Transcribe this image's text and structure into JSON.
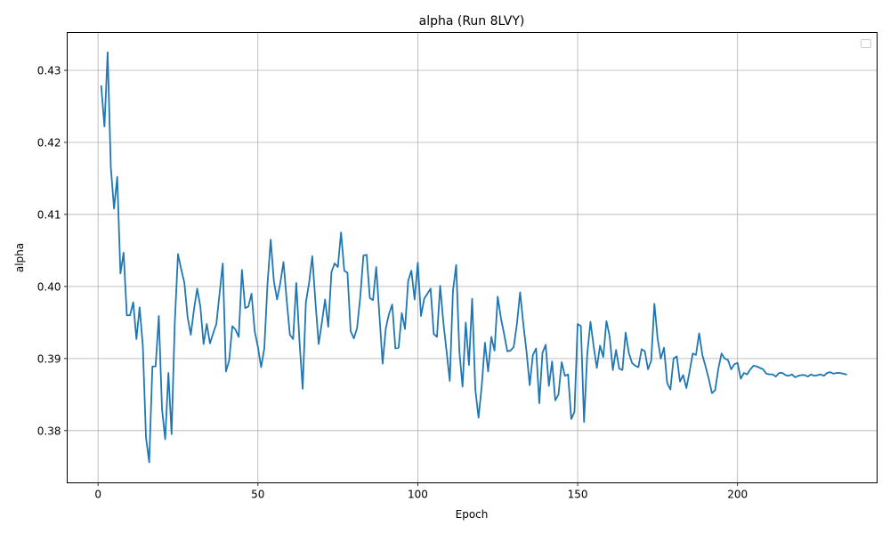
{
  "chart_data": {
    "type": "line",
    "title": "alpha (Run 8LVY)",
    "xlabel": "Epoch",
    "ylabel": "alpha",
    "xlim": [
      -9.65,
      243.65
    ],
    "ylim": [
      0.37275,
      0.43525
    ],
    "xticks": [
      0,
      50,
      100,
      150,
      200
    ],
    "yticks": [
      0.38,
      0.39,
      0.4,
      0.41,
      0.42,
      0.43
    ],
    "ytick_labels": [
      "0.38",
      "0.39",
      "0.40",
      "0.41",
      "0.42",
      "0.43"
    ],
    "grid": true,
    "legend": "top-right (empty)",
    "color": "#1f77b4",
    "series": [
      {
        "x": [
          1,
          2,
          3,
          4,
          5,
          6,
          7,
          8,
          9,
          10,
          11,
          12,
          13,
          14,
          15,
          16,
          17,
          18,
          19,
          20,
          21,
          22,
          23,
          24,
          25,
          26,
          27,
          28,
          29,
          30,
          31,
          32,
          33,
          34,
          35,
          36,
          37,
          38,
          39,
          40,
          41,
          42,
          43,
          44,
          45,
          46,
          47,
          48,
          49,
          50,
          51,
          52,
          53,
          54,
          55,
          56,
          57,
          58,
          59,
          60,
          61,
          62,
          63,
          64,
          65,
          66,
          67,
          68,
          69,
          70,
          71,
          72,
          73,
          74,
          75,
          76,
          77,
          78,
          79,
          80,
          81,
          82,
          83,
          84,
          85,
          86,
          87,
          88,
          89,
          90,
          91,
          92,
          93,
          94,
          95,
          96,
          97,
          98,
          99,
          100,
          101,
          102,
          103,
          104,
          105,
          106,
          107,
          108,
          109,
          110,
          111,
          112,
          113,
          114,
          115,
          116,
          117,
          118,
          119,
          120,
          121,
          122,
          123,
          124,
          125,
          126,
          127,
          128,
          129,
          130,
          131,
          132,
          133,
          134,
          135,
          136,
          137,
          138,
          139,
          140,
          141,
          142,
          143,
          144,
          145,
          146,
          147,
          148,
          149,
          150,
          151,
          152,
          153,
          154,
          155,
          156,
          157,
          158,
          159,
          160,
          161,
          162,
          163,
          164,
          165,
          166,
          167,
          168,
          169,
          170,
          171,
          172,
          173,
          174,
          175,
          176,
          177,
          178,
          179,
          180,
          181,
          182,
          183,
          184,
          185,
          186,
          187,
          188,
          189,
          190,
          191,
          192,
          193,
          194,
          195,
          196,
          197,
          198,
          199,
          200,
          201,
          202,
          203,
          204,
          205,
          206,
          207,
          208,
          209,
          210,
          211,
          212,
          213,
          214,
          215,
          216,
          217,
          218,
          219,
          220,
          221,
          222,
          223,
          224,
          225,
          226,
          227,
          228,
          229,
          230,
          231,
          232,
          233,
          234
        ],
        "y": [
          0.4278,
          0.4222,
          0.4325,
          0.4165,
          0.4108,
          0.4152,
          0.4018,
          0.4047,
          0.396,
          0.396,
          0.3978,
          0.3927,
          0.3971,
          0.3918,
          0.379,
          0.3756,
          0.3889,
          0.3889,
          0.3959,
          0.383,
          0.3788,
          0.388,
          0.3795,
          0.395,
          0.4045,
          0.4024,
          0.4005,
          0.3958,
          0.3933,
          0.3968,
          0.3997,
          0.3972,
          0.392,
          0.3948,
          0.3921,
          0.3935,
          0.3948,
          0.399,
          0.4032,
          0.3882,
          0.3897,
          0.3945,
          0.394,
          0.393,
          0.4023,
          0.397,
          0.3972,
          0.399,
          0.3938,
          0.3916,
          0.3888,
          0.3914,
          0.4004,
          0.4065,
          0.4007,
          0.3982,
          0.4005,
          0.4034,
          0.3981,
          0.3933,
          0.3927,
          0.4005,
          0.3924,
          0.3858,
          0.3978,
          0.4005,
          0.4042,
          0.3978,
          0.392,
          0.395,
          0.3982,
          0.3944,
          0.402,
          0.4032,
          0.4027,
          0.4075,
          0.4022,
          0.4019,
          0.3938,
          0.3928,
          0.3942,
          0.3985,
          0.4043,
          0.4044,
          0.3984,
          0.3981,
          0.4027,
          0.396,
          0.3893,
          0.3942,
          0.3962,
          0.3975,
          0.3914,
          0.3915,
          0.3963,
          0.3941,
          0.4008,
          0.4022,
          0.3982,
          0.4033,
          0.3959,
          0.3983,
          0.399,
          0.3997,
          0.3934,
          0.393,
          0.4001,
          0.395,
          0.391,
          0.3869,
          0.3994,
          0.403,
          0.391,
          0.3861,
          0.395,
          0.3891,
          0.3983,
          0.3857,
          0.3818,
          0.3862,
          0.3922,
          0.3882,
          0.393,
          0.3911,
          0.3986,
          0.3956,
          0.3934,
          0.391,
          0.3911,
          0.3916,
          0.3948,
          0.3992,
          0.3948,
          0.391,
          0.3863,
          0.3905,
          0.3914,
          0.3838,
          0.3908,
          0.3919,
          0.3862,
          0.3896,
          0.3842,
          0.385,
          0.3895,
          0.3876,
          0.3878,
          0.3816,
          0.3826,
          0.3948,
          0.3945,
          0.3812,
          0.3906,
          0.3951,
          0.3917,
          0.3887,
          0.3918,
          0.3902,
          0.3952,
          0.3931,
          0.3884,
          0.3912,
          0.3886,
          0.3884,
          0.3936,
          0.3908,
          0.3894,
          0.389,
          0.3888,
          0.3913,
          0.391,
          0.3885,
          0.3897,
          0.3976,
          0.3928,
          0.39,
          0.3915,
          0.3866,
          0.3857,
          0.39,
          0.3903,
          0.3868,
          0.3877,
          0.3859,
          0.3882,
          0.3907,
          0.3905,
          0.3935,
          0.3905,
          0.3889,
          0.3872,
          0.3852,
          0.3856,
          0.3886,
          0.3907,
          0.39,
          0.3898,
          0.3885,
          0.3892,
          0.3894,
          0.3872,
          0.388,
          0.3878,
          0.3885,
          0.389,
          0.3889,
          0.3887,
          0.3885,
          0.3879,
          0.3878,
          0.3878,
          0.3875,
          0.388,
          0.388,
          0.3877,
          0.3876,
          0.3878,
          0.3874,
          0.3876,
          0.3877,
          0.3877,
          0.3875,
          0.3878,
          0.3876,
          0.3877,
          0.3878,
          0.3876,
          0.388,
          0.3881,
          0.3879,
          0.388,
          0.388,
          0.3879,
          0.3878
        ]
      }
    ]
  }
}
